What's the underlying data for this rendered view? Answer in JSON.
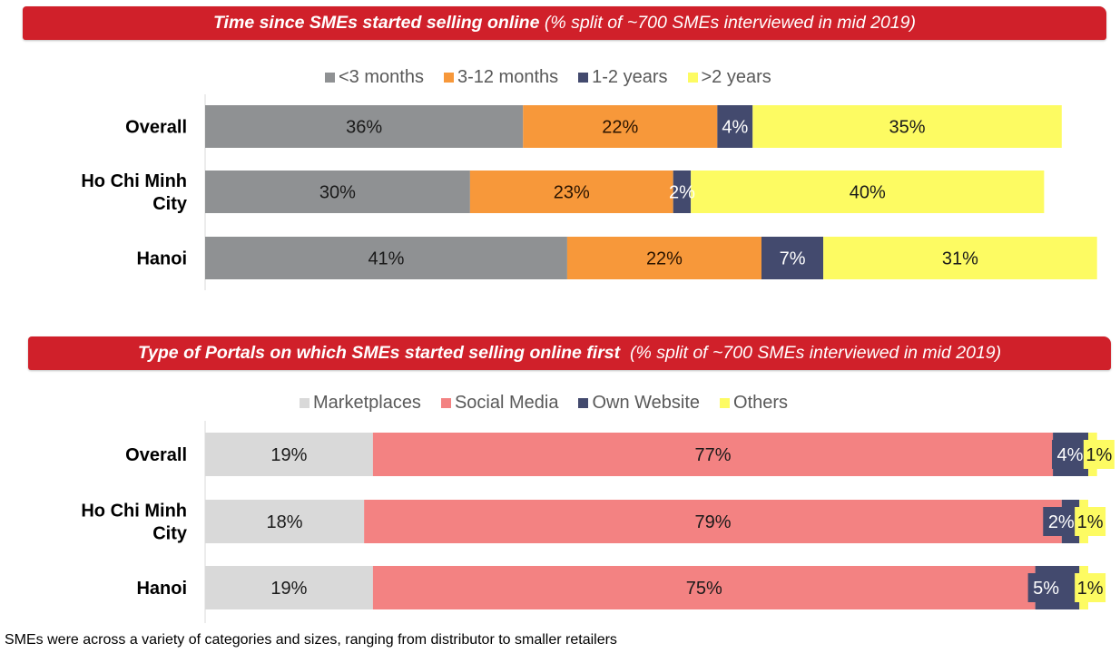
{
  "chart_data": [
    {
      "type": "bar",
      "orientation": "horizontal",
      "stacked": true,
      "title": "Time since SMEs started selling online",
      "subtitle": "(% split of ~700 SMEs interviewed in mid 2019)",
      "categories": [
        "Overall",
        "Ho Chi Minh City",
        "Hanoi"
      ],
      "category_lines": [
        [
          "Overall"
        ],
        [
          "Ho Chi Minh",
          "City"
        ],
        [
          "Hanoi"
        ]
      ],
      "series": [
        {
          "name": "<3 months",
          "color": "#8f9193",
          "label_color": "#1a1a1a",
          "values": [
            36,
            30,
            41
          ],
          "labels": [
            "36%",
            "30%",
            "41%"
          ]
        },
        {
          "name": "3-12 months",
          "color": "#f7983a",
          "label_color": "#2a1400",
          "values": [
            22,
            23,
            22
          ],
          "labels": [
            "22%",
            "23%",
            "22%"
          ]
        },
        {
          "name": "1-2 years",
          "color": "#434a6e",
          "label_color": "#ffffff",
          "values": [
            4,
            2,
            7
          ],
          "labels": [
            "4%",
            "2%",
            "7%"
          ]
        },
        {
          "name": ">2 years",
          "color": "#fdfb62",
          "label_color": "#1a1a1a",
          "values": [
            35,
            40,
            31
          ],
          "labels": [
            "35%",
            "40%",
            "31%"
          ]
        }
      ],
      "xlim": [
        0,
        100
      ],
      "legend": "top-center",
      "grid": false
    },
    {
      "type": "bar",
      "orientation": "horizontal",
      "stacked": true,
      "title": "Type of Portals on which SMEs started selling online first",
      "subtitle": "(% split of ~700 SMEs interviewed in mid 2019)",
      "categories": [
        "Overall",
        "Ho Chi Minh City",
        "Hanoi"
      ],
      "category_lines": [
        [
          "Overall"
        ],
        [
          "Ho Chi Minh",
          "City"
        ],
        [
          "Hanoi"
        ]
      ],
      "series": [
        {
          "name": "Marketplaces",
          "color": "#d9d9d9",
          "label_color": "#1a1a1a",
          "values": [
            19,
            18,
            19
          ],
          "labels": [
            "19%",
            "18%",
            "19%"
          ]
        },
        {
          "name": "Social Media",
          "color": "#f38282",
          "label_color": "#1a1a1a",
          "values": [
            77,
            79,
            75
          ],
          "labels": [
            "77%",
            "79%",
            "75%"
          ]
        },
        {
          "name": "Own Website",
          "color": "#434a6e",
          "label_color": "#ffffff",
          "values": [
            4,
            2,
            5
          ],
          "labels": [
            "4%",
            "2%",
            "5%"
          ],
          "label_boxed": true
        },
        {
          "name": "Others",
          "color": "#fdfb62",
          "label_color": "#1a1a1a",
          "values": [
            1,
            1,
            1
          ],
          "labels": [
            "1%",
            "1%",
            "1%"
          ],
          "label_boxed": true
        }
      ],
      "xlim": [
        0,
        100
      ],
      "legend": "top-center",
      "grid": false
    }
  ],
  "footnote": "SMEs were across a variety of categories and sizes, ranging from distributor to smaller retailers"
}
